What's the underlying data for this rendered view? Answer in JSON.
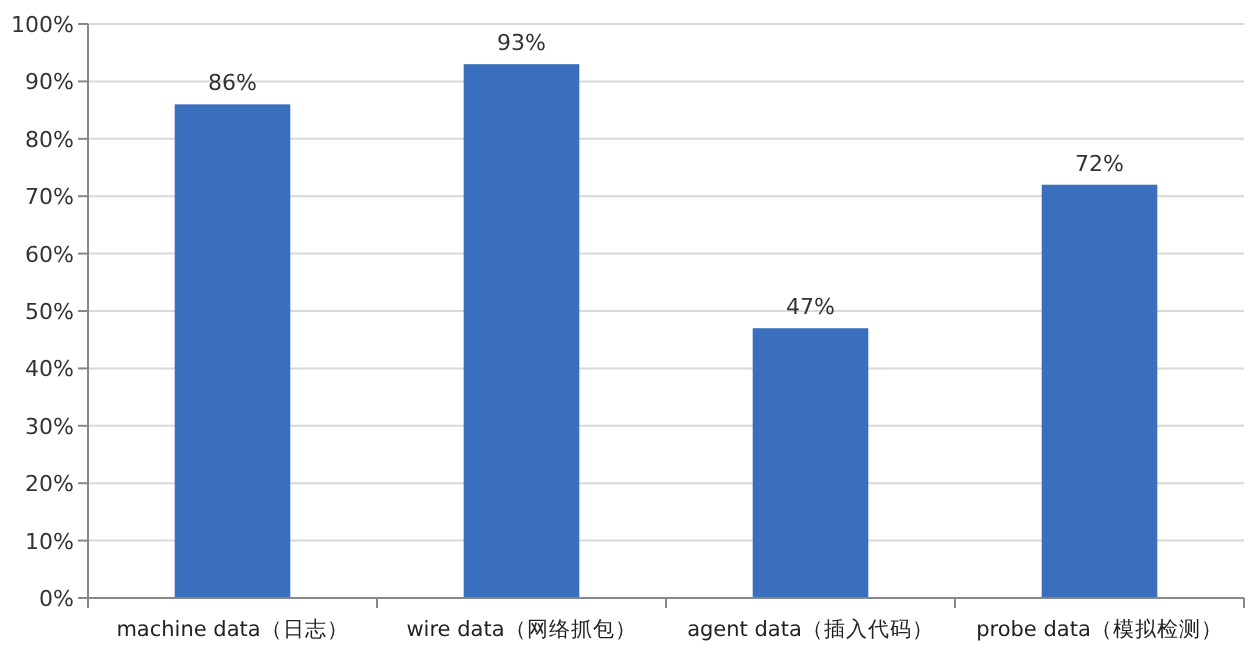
{
  "chart_data": {
    "type": "bar",
    "categories": [
      "machine data（日志）",
      "wire data（网络抓包）",
      "agent data（插入代码）",
      "probe data（模拟检测）"
    ],
    "values": [
      86,
      93,
      47,
      72
    ],
    "value_labels": [
      "86%",
      "93%",
      "47%",
      "72%"
    ],
    "color": "#3a6fbd",
    "ylim": [
      0,
      100
    ],
    "yticks": [
      {
        "value": 0,
        "label": "0%"
      },
      {
        "value": 10,
        "label": "10%"
      },
      {
        "value": 20,
        "label": "20%"
      },
      {
        "value": 30,
        "label": "30%"
      },
      {
        "value": 40,
        "label": "40%"
      },
      {
        "value": 50,
        "label": "50%"
      },
      {
        "value": 60,
        "label": "60%"
      },
      {
        "value": 70,
        "label": "70%"
      },
      {
        "value": 80,
        "label": "80%"
      },
      {
        "value": 90,
        "label": "90%"
      },
      {
        "value": 100,
        "label": "100%"
      }
    ],
    "grid": "y"
  }
}
